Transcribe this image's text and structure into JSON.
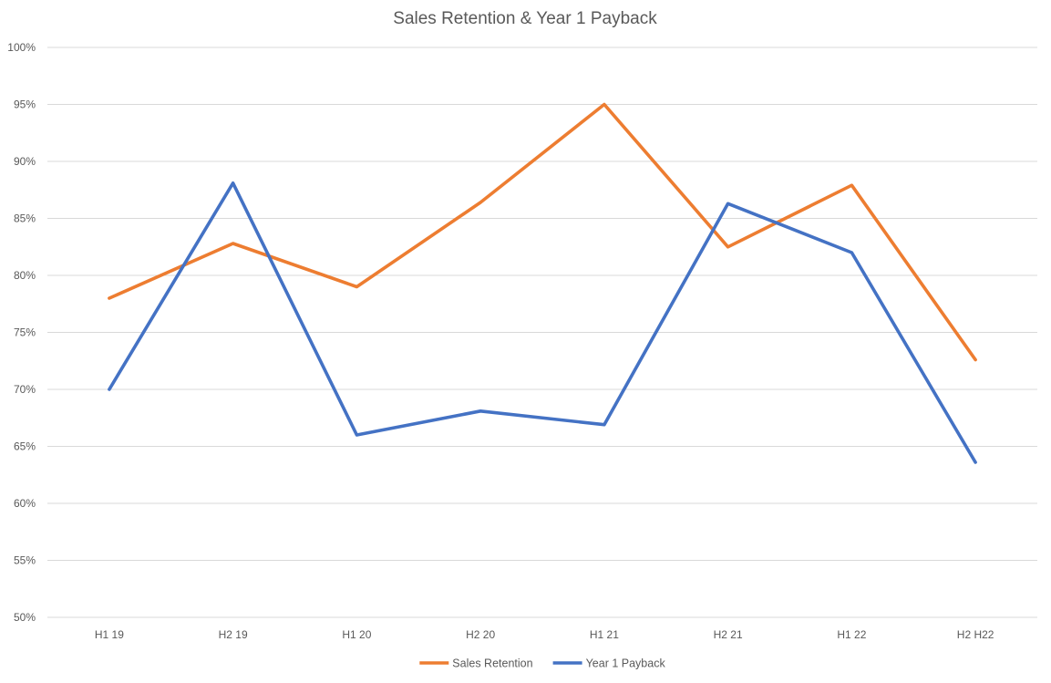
{
  "chart_data": {
    "type": "line",
    "title": "Sales Retention & Year 1 Payback",
    "categories": [
      "H1 19",
      "H2 19",
      "H1 20",
      "H2 20",
      "H1 21",
      "H2 21",
      "H1 22",
      "H2 H22"
    ],
    "series": [
      {
        "name": "Sales Retention",
        "color": "#ed7d31",
        "values": [
          78.0,
          82.8,
          79.0,
          86.4,
          95.0,
          82.5,
          87.9,
          72.6
        ]
      },
      {
        "name": "Year 1 Payback",
        "color": "#4472c4",
        "values": [
          70.0,
          88.1,
          66.0,
          68.1,
          66.9,
          86.3,
          82.0,
          63.6
        ]
      }
    ],
    "ylim": [
      50,
      100
    ],
    "yticks": [
      50,
      55,
      60,
      65,
      70,
      75,
      80,
      85,
      90,
      95,
      100
    ],
    "ytick_labels": [
      "50%",
      "55%",
      "60%",
      "65%",
      "70%",
      "75%",
      "80%",
      "85%",
      "90%",
      "95%",
      "100%"
    ],
    "xlabel": "",
    "ylabel": "",
    "grid": true,
    "legend": "bottom"
  }
}
